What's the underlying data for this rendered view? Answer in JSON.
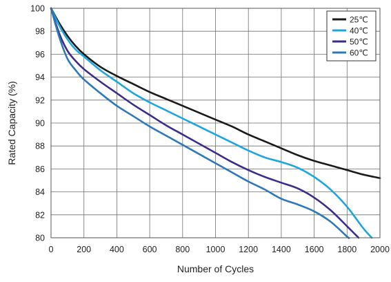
{
  "chart_data": {
    "type": "line",
    "title": "",
    "xlabel": "Number of Cycles",
    "ylabel": "Rated Capacity (%)",
    "xlim": [
      0,
      2000
    ],
    "ylim": [
      80,
      100
    ],
    "xticks": [
      0,
      200,
      400,
      600,
      800,
      1000,
      1200,
      1400,
      1600,
      1800,
      2000
    ],
    "yticks": [
      80,
      82,
      84,
      86,
      88,
      90,
      92,
      94,
      96,
      98,
      100
    ],
    "grid": true,
    "legend_position": "top-right",
    "series": [
      {
        "name": "25℃",
        "color": "#1a1a1a",
        "x": [
          0,
          50,
          100,
          150,
          200,
          300,
          400,
          500,
          600,
          700,
          800,
          900,
          1000,
          1100,
          1200,
          1300,
          1400,
          1500,
          1600,
          1700,
          1800,
          1900,
          2000
        ],
        "y": [
          100,
          98.7,
          97.6,
          96.7,
          96.0,
          94.9,
          94.1,
          93.4,
          92.7,
          92.1,
          91.5,
          90.9,
          90.3,
          89.7,
          89.0,
          88.4,
          87.8,
          87.2,
          86.7,
          86.3,
          85.9,
          85.5,
          85.2
        ]
      },
      {
        "name": "40℃",
        "color": "#1ea6dc",
        "x": [
          0,
          50,
          100,
          150,
          200,
          300,
          400,
          500,
          600,
          700,
          800,
          900,
          1000,
          1100,
          1200,
          1300,
          1400,
          1500,
          1600,
          1700,
          1800,
          1900,
          1950
        ],
        "y": [
          100,
          98.5,
          97.3,
          96.4,
          95.8,
          94.6,
          93.6,
          92.6,
          91.8,
          91.1,
          90.4,
          89.7,
          89.0,
          88.3,
          87.6,
          87.0,
          86.6,
          86.1,
          85.3,
          84.2,
          82.7,
          80.8,
          80.0
        ]
      },
      {
        "name": "50℃",
        "color": "#3b2d8a",
        "x": [
          0,
          50,
          100,
          150,
          200,
          300,
          400,
          500,
          600,
          700,
          800,
          900,
          1000,
          1100,
          1200,
          1300,
          1400,
          1500,
          1600,
          1700,
          1800,
          1870
        ],
        "y": [
          100,
          97.8,
          96.3,
          95.4,
          94.7,
          93.6,
          92.6,
          91.6,
          90.7,
          89.8,
          89.0,
          88.2,
          87.4,
          86.6,
          85.9,
          85.3,
          84.8,
          84.3,
          83.5,
          82.4,
          81.0,
          80.0
        ]
      },
      {
        "name": "60℃",
        "color": "#2e78b8",
        "x": [
          0,
          50,
          100,
          150,
          200,
          300,
          400,
          500,
          600,
          700,
          800,
          900,
          1000,
          1100,
          1200,
          1300,
          1400,
          1500,
          1600,
          1700,
          1800,
          1810
        ],
        "y": [
          100,
          97.5,
          95.6,
          94.6,
          93.8,
          92.6,
          91.5,
          90.6,
          89.7,
          88.9,
          88.1,
          87.3,
          86.5,
          85.7,
          84.9,
          84.2,
          83.4,
          82.9,
          82.3,
          81.4,
          80.1,
          80.0
        ]
      }
    ]
  }
}
